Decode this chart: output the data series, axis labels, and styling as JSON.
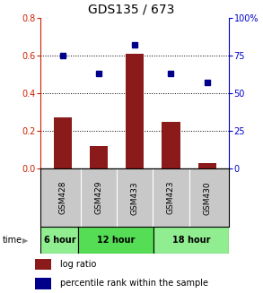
{
  "title": "GDS135 / 673",
  "samples": [
    "GSM428",
    "GSM429",
    "GSM433",
    "GSM423",
    "GSM430"
  ],
  "log_ratio": [
    0.27,
    0.12,
    0.61,
    0.245,
    0.03
  ],
  "percentile_rank": [
    75,
    63,
    82,
    63,
    57
  ],
  "bar_color": "#8B1A1A",
  "dot_color": "#00008B",
  "left_ylim": [
    0,
    0.8
  ],
  "right_ylim": [
    0,
    100
  ],
  "left_yticks": [
    0,
    0.2,
    0.4,
    0.6,
    0.8
  ],
  "right_yticks": [
    0,
    25,
    50,
    75,
    100
  ],
  "right_yticklabels": [
    "0",
    "25",
    "50",
    "75",
    "100%"
  ],
  "dotted_lines": [
    0.2,
    0.4,
    0.6
  ],
  "time_groups": [
    {
      "label": "6 hour",
      "start": 0,
      "end": 1,
      "color": "#90EE90"
    },
    {
      "label": "12 hour",
      "start": 1,
      "end": 3,
      "color": "#55DD55"
    },
    {
      "label": "18 hour",
      "start": 3,
      "end": 5,
      "color": "#90EE90"
    }
  ],
  "time_label": "time",
  "legend_log_ratio": "log ratio",
  "legend_percentile": "percentile rank within the sample",
  "bar_width": 0.5,
  "title_fontsize": 10,
  "tick_fontsize": 7,
  "bg_color_gsm": "#C8C8C8",
  "left_tick_color": "#CC2200",
  "right_tick_color": "#0000CC"
}
